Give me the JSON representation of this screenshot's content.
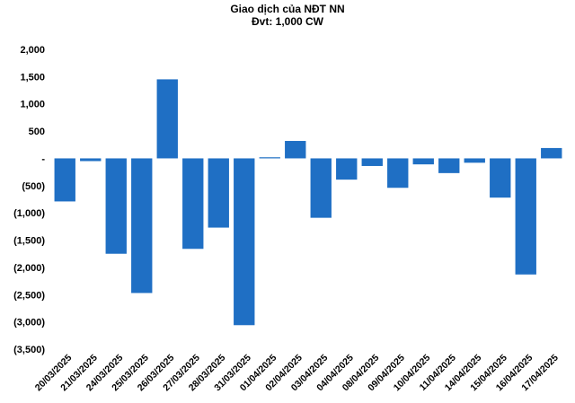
{
  "chart_data": {
    "type": "bar",
    "title": "Giao dịch của NĐT NN",
    "subtitle": "Đvt: 1,000 CW",
    "xlabel": "",
    "ylabel": "",
    "ylim": [
      -3500,
      2000
    ],
    "yticks": [
      2000,
      1500,
      1000,
      500,
      0,
      -500,
      -1000,
      -1500,
      -2000,
      -2500,
      -3000,
      -3500
    ],
    "ytick_labels": [
      "2,000",
      "1,500",
      "1,000",
      "500",
      "-",
      "(500)",
      "(1,000)",
      "(1,500)",
      "(2,000)",
      "(2,500)",
      "(3,000)",
      "(3,500)"
    ],
    "categories": [
      "20/03/2025",
      "21/03/2025",
      "24/03/2025",
      "25/03/2025",
      "26/03/2025",
      "27/03/2025",
      "28/03/2025",
      "31/03/2025",
      "01/04/2025",
      "02/04/2025",
      "03/04/2025",
      "04/04/2025",
      "08/04/2025",
      "09/04/2025",
      "10/04/2025",
      "11/04/2025",
      "14/04/2025",
      "15/04/2025",
      "16/04/2025",
      "17/04/2025"
    ],
    "values": [
      -790,
      -50,
      -1750,
      -2470,
      1450,
      -1660,
      -1270,
      -3060,
      20,
      320,
      -1090,
      -390,
      -140,
      -540,
      -110,
      -270,
      -80,
      -720,
      -2130,
      190
    ],
    "bar_color": "#1F6FC4",
    "grid": false,
    "legend": "none"
  }
}
